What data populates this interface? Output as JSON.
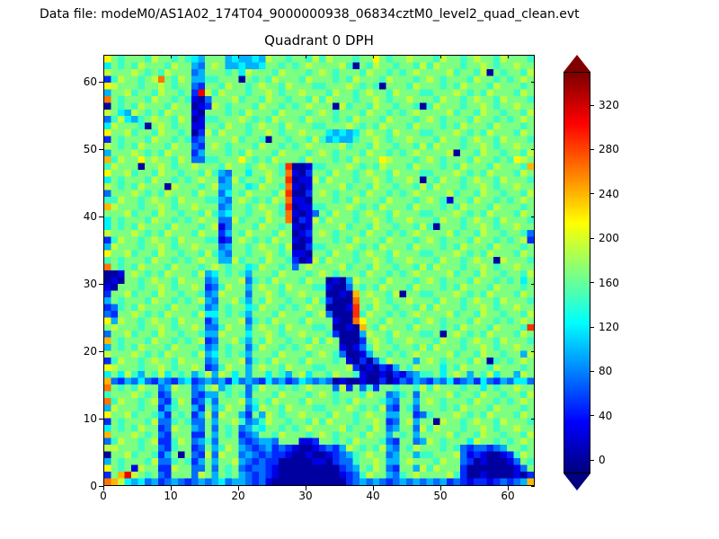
{
  "figure": {
    "datafile_label": "Data file: modeM0/AS1A02_174T04_9000000938_06834cztM0_level2_quad_clean.evt"
  },
  "chart_data": {
    "type": "heatmap",
    "title": "Quadrant 0 DPH",
    "xlabel": "",
    "ylabel": "",
    "xlim": [
      0,
      64
    ],
    "ylim": [
      0,
      64
    ],
    "x_ticks": [
      0,
      10,
      20,
      30,
      40,
      50,
      60
    ],
    "y_ticks": [
      0,
      10,
      20,
      30,
      40,
      50,
      60
    ],
    "grid": false,
    "colorbar": {
      "colormap": "jet",
      "extend": "both",
      "vmin": -12,
      "vmax": 350,
      "ticks": [
        0,
        40,
        80,
        120,
        160,
        200,
        240,
        280,
        320
      ]
    },
    "value_encoding": {
      "description": "Each row is 64 hex chars (x=0..63 left to right); counts value = hexdigit * bucket_value. Rows listed top (y=63) to bottom (y=0).",
      "chars": "0123456789abcdef",
      "bucket_value": 24,
      "row_order": "top_to_bottom"
    },
    "rows": [
      "9767776877676547774544548776776868777677976778777687767877687776",
      "5767687776877437874454457767678777786076877677686877767787677877",
      "8777876768777347776758777687776787677768776767877778677680767768",
      "26877678b76874466777076768777687776768777687776787677768776767 87",
      "9877767787677327768776787768777667778767607776877767687776877767",
      "47786776877672d868777677876778777687767877687776 6777876768777687",
      "b767776877676103777867768776776868777677876778777687767877687776",
      "0767687776877012876777687767678777086776877677606877767787677877",
      "8754876768777107776768777687776787677768776767877778677687767768",
      "3685467877687016677787676877768777676877768777678767776877676787",
      "5877760787677117768776787768777667778767687776877767687776877767",
      "9778677687767028687776778767787775454578776877766777876768777687",
      "2767776877676237777867760776776864544677876778777687767877687776",
      "8767687776877327876777687767678777786776877677686877767787677877",
      "4777876768777247776768777687776787677768776767877778077687767768",
      "a68779787768733667779767687776877767687779877767 8767776877676987",
      "687770778767787776877678776c00166777876768777687776768777687776a",
      "977867768776776864377577876b10277687767877687776 6777876768777687",
      "576777687767678773486776877c01186877767787677870 7687767877687776",
      "876768777087776784477568776b10177778677687767768 6877767787677877",
      "377787676877768773576877768c00278767776877676787 7778677687767768",
      "668776787768777664378767687b11077767687776877767 8761776877676787",
      "a87776778767787773477678776c01166777876768777687 7767687776877767",
      "777867768776776864577677876b10137687767877687776 6777876768777687",
      "576777687767678773386776877b02186877767787677877 7687767877687776",
      "5767687776877767813777687767101777786776877677686077767787677877",
      "8777876768777687724768777687012787677768776767877778677687767763",
      "2687767877687776612787676877101777676877768777678767776877676782",
      "4877767787677877734776787768002667778767687776877767687776877767",
      "9778677687767768643776778767110776877678776877766777876768777687",
      "6767776877676787744867768776201868777677876778777687767877087776",
      "b767687776877767876775687767378777786776877677686877767787677877",
      "0017876768777684576764777687776787677768776767877778677687767768",
      "0107767877687773477783676877768770104877768777678767776877676757",
      "1077767787677872368774787768777661003767687776877767687776877767",
      "277867768776776348777377876778777 0010a78776807766777876768777687",
      "4767776877676784377864768776776862000b77876778777687767877687776",
      "2367687776877763476775687767678770001c76877677686877767787677877",
      "3277876768777685576764777687776783000c68776767877778677687767768",
      "9487767877687772477783676877768777100b97768777678767776877676787",
      "78777677876778733687747877687776670010a768777687776768777687776c",
      "3778677687767764487775778767787776200048776877766707876768777687",
      "a767776877676782377864768776776868700027876778777687767877687776",
      "4767687776877763476773687767678777710136877677686877767787677877",
      "8777876768777684576764777687776787630014776767877778677687767748",
      "2687767877687773477783676877768777671020368777478767776870676787",
      "9877767787677872368774787768777667778201021476877757687776877767",
      "5758647685767468487574775764785776877610010213466757874768577487",
      "a3243532432452343425343253423543430100100201324 32435234253243553",
      "b767687734877347846773687767678777382736277677686877767757677877",
      "6777876723777324476763777687776787677768773467377778677687767768",
      "b687767832687236377784676877768777676877764377478767776877676787",
      "4877767724677427468773587768777667778767683276377767687776877767",
      "9778677642767248387742748767787776877678774477236777876768777687",
      "2767776833676337477863468776776868777677872378477087767877687776",
      "5767687723877437376734657767678777786776873477386877767787677877",
      "a777876732777227476723477687776787677768774767477778677687767768",
      "3687767822687346377732344377711277676877763277348767775877676787",
      "8877767732677237468743234232100123248767684376877767632332347767",
      "0778677624707328387734323221001001234678773477466777831210012687",
      "4767776833676247477843232200000110233677874478777687732010001376",
      "9767187722877337376732332100000000023476873277486877720000000137",
      "27ad87673277738747674323210000000001236877436787 7778620010000102",
      "ba854534234323434534432310000000000023434323434 3434232122123234a"
    ]
  }
}
